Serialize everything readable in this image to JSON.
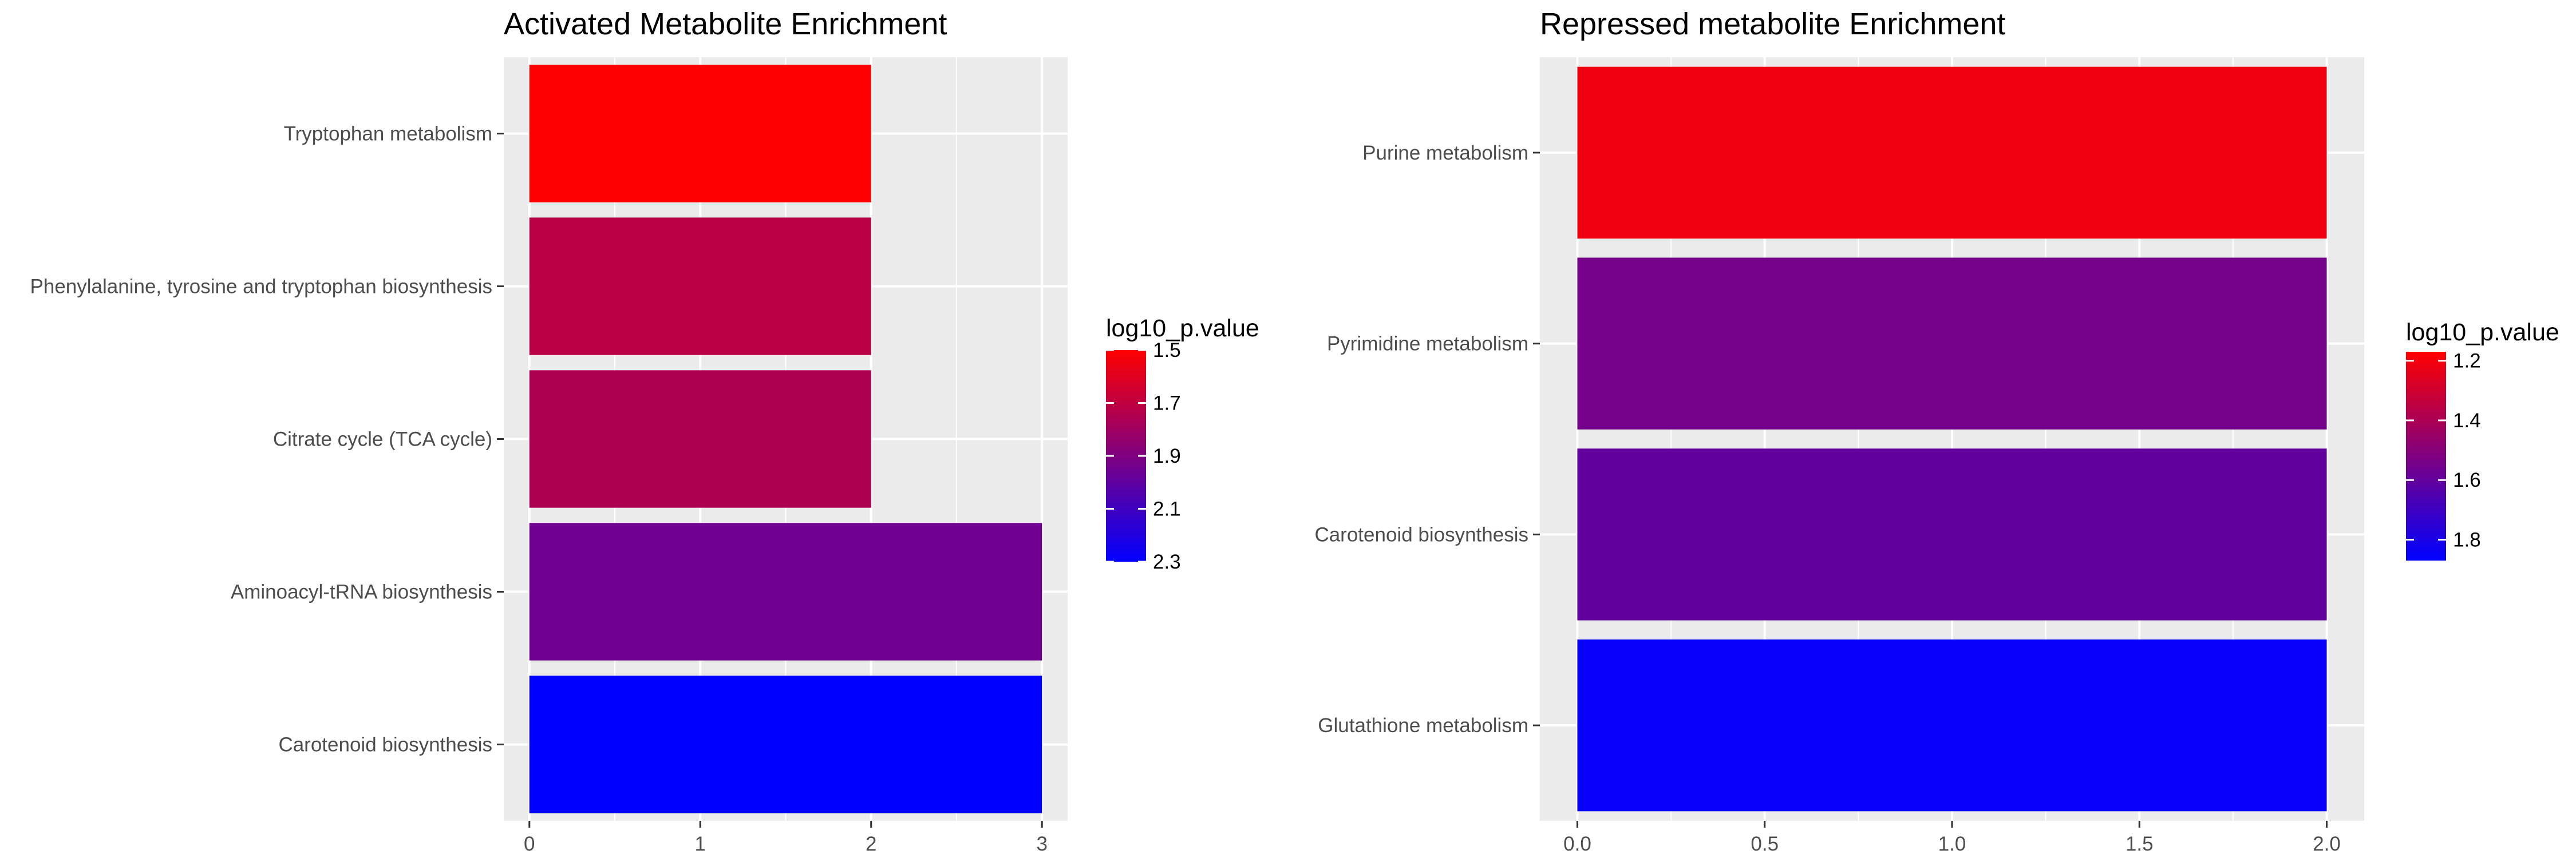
{
  "chart_data": [
    {
      "type": "bar",
      "orientation": "horizontal",
      "title": "Activated Metabolite Enrichment",
      "categories": [
        "Tryptophan metabolism",
        "Phenylalanine, tyrosine and tryptophan biosynthesis",
        "Citrate cycle (TCA cycle)",
        "Aminoacyl-tRNA biosynthesis",
        "Carotenoid biosynthesis"
      ],
      "values": [
        2,
        2,
        2,
        3,
        3
      ],
      "log10_p_values": [
        1.5,
        1.72,
        1.76,
        1.95,
        2.3
      ],
      "xlim": [
        -0.15,
        3.15
      ],
      "xticks": [
        0,
        1,
        2,
        3
      ],
      "xtick_labels": [
        "0",
        "1",
        "2",
        "3"
      ],
      "legend": {
        "title": "log10_p.value",
        "min": 1.5,
        "max": 2.3,
        "ticks": [
          1.5,
          1.7,
          1.9,
          2.1,
          2.3
        ],
        "tick_labels": [
          "1.5",
          "1.7",
          "1.9",
          "2.1",
          "2.3"
        ],
        "low_color": "#ff0000",
        "high_color": "#0000ff",
        "placement": "right"
      },
      "background_color": "#ebebeb",
      "grid_color": "#ffffff"
    },
    {
      "type": "bar",
      "orientation": "horizontal",
      "title": "Repressed metabolite Enrichment",
      "categories": [
        "Purine metabolism",
        "Pyrimidine metabolism",
        "Carotenoid biosynthesis",
        "Glutathione metabolism"
      ],
      "values": [
        2,
        2,
        2,
        2
      ],
      "log10_p_values": [
        1.21,
        1.55,
        1.6,
        1.85
      ],
      "xlim": [
        -0.1,
        2.1
      ],
      "xticks": [
        0,
        0.5,
        1,
        1.5,
        2
      ],
      "xtick_labels": [
        "0.0",
        "0.5",
        "1.0",
        "1.5",
        "2.0"
      ],
      "legend": {
        "title": "log10_p.value",
        "min": 1.17,
        "max": 1.87,
        "ticks": [
          1.2,
          1.4,
          1.6,
          1.8
        ],
        "tick_labels": [
          "1.2",
          "1.4",
          "1.6",
          "1.8"
        ],
        "low_color": "#ff0000",
        "high_color": "#0000ff",
        "placement": "right"
      },
      "background_color": "#ebebeb",
      "grid_color": "#ffffff"
    }
  ]
}
